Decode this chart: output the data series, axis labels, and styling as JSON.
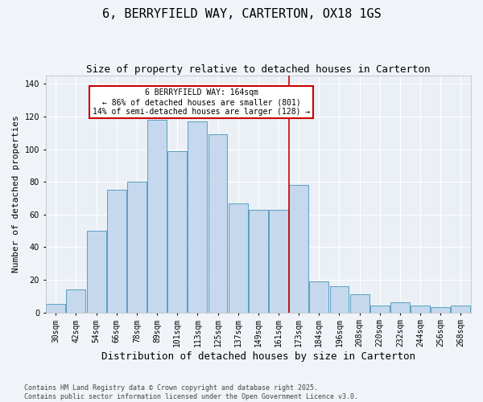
{
  "title1": "6, BERRYFIELD WAY, CARTERTON, OX18 1GS",
  "title2": "Size of property relative to detached houses in Carterton",
  "xlabel": "Distribution of detached houses by size in Carterton",
  "ylabel": "Number of detached properties",
  "categories": [
    "30sqm",
    "42sqm",
    "54sqm",
    "66sqm",
    "78sqm",
    "89sqm",
    "101sqm",
    "113sqm",
    "125sqm",
    "137sqm",
    "149sqm",
    "161sqm",
    "173sqm",
    "184sqm",
    "196sqm",
    "208sqm",
    "220sqm",
    "232sqm",
    "244sqm",
    "256sqm",
    "268sqm"
  ],
  "values": [
    5,
    14,
    50,
    75,
    80,
    118,
    99,
    117,
    109,
    67,
    63,
    63,
    78,
    19,
    16,
    11,
    4,
    6,
    4,
    3,
    4
  ],
  "bar_color": "#c5d8ed",
  "bar_edge_color": "#5a9fc0",
  "vline_x_idx": 11.5,
  "vline_color": "#cc0000",
  "annotation_text": "6 BERRYFIELD WAY: 164sqm\n← 86% of detached houses are smaller (801)\n14% of semi-detached houses are larger (128) →",
  "annotation_box_color": "#cc0000",
  "ylim": [
    0,
    145
  ],
  "yticks": [
    0,
    20,
    40,
    60,
    80,
    100,
    120,
    140
  ],
  "background_color": "#eaf0f6",
  "fig_background_color": "#f0f4f8",
  "footer_text": "Contains HM Land Registry data © Crown copyright and database right 2025.\nContains public sector information licensed under the Open Government Licence v3.0.",
  "title1_fontsize": 11,
  "title2_fontsize": 9,
  "xlabel_fontsize": 9,
  "ylabel_fontsize": 8,
  "tick_fontsize": 7,
  "annotation_fontsize": 7,
  "footer_fontsize": 6
}
